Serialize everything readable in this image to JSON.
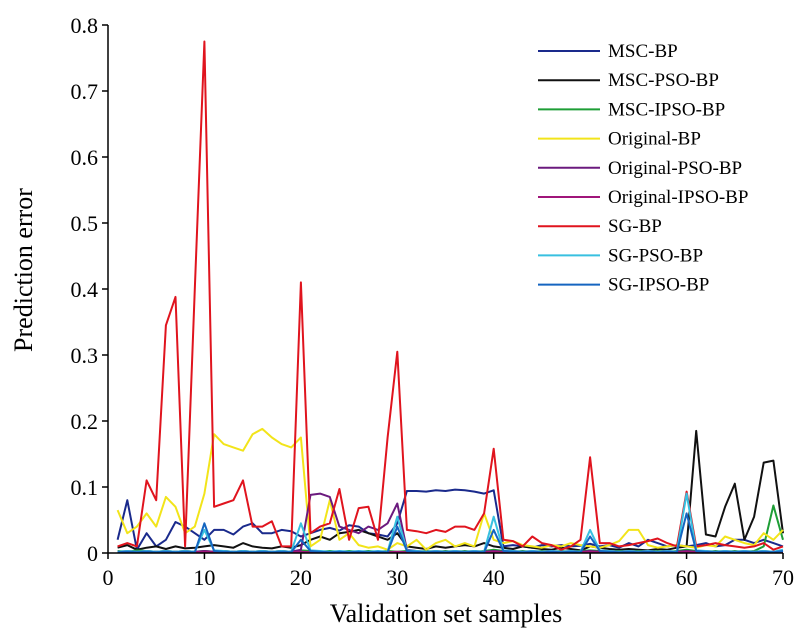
{
  "chart_data": {
    "type": "line",
    "xlabel": "Validation set samples",
    "ylabel": "Prediction error",
    "xlim": [
      0,
      70
    ],
    "ylim": [
      0,
      0.8
    ],
    "xticks": [
      0,
      10,
      20,
      30,
      40,
      50,
      60,
      70
    ],
    "yticks": [
      0,
      0.1,
      0.2,
      0.3,
      0.4,
      0.5,
      0.6,
      0.7,
      0.8
    ],
    "ytick_labels": [
      "0",
      "0.1",
      "0.2",
      "0.3",
      "0.4",
      "0.5",
      "0.6",
      "0.7",
      "0.8"
    ],
    "grid": false,
    "legend_position": "top-right",
    "x": [
      1,
      2,
      3,
      4,
      5,
      6,
      7,
      8,
      9,
      10,
      11,
      12,
      13,
      14,
      15,
      16,
      17,
      18,
      19,
      20,
      21,
      22,
      23,
      24,
      25,
      26,
      27,
      28,
      29,
      30,
      31,
      32,
      33,
      34,
      35,
      36,
      37,
      38,
      39,
      40,
      41,
      42,
      43,
      44,
      45,
      46,
      47,
      48,
      49,
      50,
      51,
      52,
      53,
      54,
      55,
      56,
      57,
      58,
      59,
      60,
      61,
      62,
      63,
      64,
      65,
      66,
      67,
      68,
      69,
      70
    ],
    "series": [
      {
        "name": "MSC-BP",
        "color": "#1a2a8c",
        "values": [
          0.02,
          0.08,
          0.005,
          0.03,
          0.01,
          0.02,
          0.047,
          0.04,
          0.03,
          0.02,
          0.035,
          0.035,
          0.028,
          0.04,
          0.045,
          0.03,
          0.03,
          0.035,
          0.033,
          0.025,
          0.03,
          0.035,
          0.038,
          0.034,
          0.042,
          0.04,
          0.03,
          0.028,
          0.025,
          0.045,
          0.094,
          0.094,
          0.093,
          0.095,
          0.094,
          0.096,
          0.095,
          0.093,
          0.09,
          0.095,
          0.01,
          0.012,
          0.01,
          0.008,
          0.012,
          0.01,
          0.012,
          0.01,
          0.011,
          0.014,
          0.01,
          0.012,
          0.008,
          0.015,
          0.01,
          0.02,
          0.015,
          0.01,
          0.012,
          0.01,
          0.012,
          0.015,
          0.01,
          0.012,
          0.02,
          0.02,
          0.015,
          0.02,
          0.015,
          0.01
        ]
      },
      {
        "name": "MSC-PSO-BP",
        "color": "#111111",
        "values": [
          0.008,
          0.012,
          0.005,
          0.008,
          0.01,
          0.006,
          0.01,
          0.007,
          0.008,
          0.01,
          0.012,
          0.01,
          0.008,
          0.015,
          0.01,
          0.008,
          0.007,
          0.01,
          0.008,
          0.012,
          0.02,
          0.025,
          0.02,
          0.03,
          0.032,
          0.035,
          0.03,
          0.025,
          0.02,
          0.03,
          0.01,
          0.008,
          0.006,
          0.01,
          0.008,
          0.01,
          0.012,
          0.01,
          0.015,
          0.01,
          0.008,
          0.006,
          0.01,
          0.008,
          0.006,
          0.005,
          0.008,
          0.006,
          0.004,
          0.01,
          0.008,
          0.006,
          0.005,
          0.006,
          0.005,
          0.004,
          0.006,
          0.005,
          0.008,
          0.01,
          0.185,
          0.028,
          0.025,
          0.07,
          0.105,
          0.02,
          0.055,
          0.137,
          0.14,
          0.03
        ]
      },
      {
        "name": "MSC-IPSO-BP",
        "color": "#1e9e36",
        "values": [
          0.003,
          0.002,
          0.004,
          0.003,
          0.002,
          0.003,
          0.002,
          0.003,
          0.002,
          0.003,
          0.002,
          0.003,
          0.002,
          0.003,
          0.002,
          0.003,
          0.002,
          0.003,
          0.002,
          0.004,
          0.003,
          0.002,
          0.003,
          0.002,
          0.003,
          0.002,
          0.003,
          0.002,
          0.003,
          0.002,
          0.003,
          0.002,
          0.003,
          0.002,
          0.003,
          0.002,
          0.003,
          0.002,
          0.003,
          0.005,
          0.003,
          0.002,
          0.003,
          0.002,
          0.003,
          0.002,
          0.003,
          0.002,
          0.003,
          0.004,
          0.003,
          0.002,
          0.003,
          0.002,
          0.003,
          0.002,
          0.003,
          0.002,
          0.003,
          0.005,
          0.003,
          0.002,
          0.003,
          0.002,
          0.003,
          0.002,
          0.003,
          0.01,
          0.072,
          0.02
        ]
      },
      {
        "name": "Original-BP",
        "color": "#f2e41a",
        "values": [
          0.065,
          0.03,
          0.04,
          0.06,
          0.04,
          0.085,
          0.07,
          0.03,
          0.04,
          0.09,
          0.18,
          0.165,
          0.16,
          0.155,
          0.18,
          0.188,
          0.175,
          0.165,
          0.16,
          0.175,
          0.01,
          0.02,
          0.08,
          0.02,
          0.03,
          0.012,
          0.008,
          0.01,
          0.005,
          0.015,
          0.01,
          0.02,
          0.005,
          0.015,
          0.02,
          0.01,
          0.015,
          0.01,
          0.06,
          0.02,
          0.015,
          0.018,
          0.012,
          0.01,
          0.008,
          0.012,
          0.01,
          0.015,
          0.012,
          0.01,
          0.008,
          0.012,
          0.018,
          0.035,
          0.035,
          0.012,
          0.008,
          0.01,
          0.012,
          0.01,
          0.008,
          0.012,
          0.01,
          0.025,
          0.02,
          0.015,
          0.012,
          0.03,
          0.02,
          0.035
        ]
      },
      {
        "name": "Original-PSO-BP",
        "color": "#6b1a7e",
        "values": [
          0.002,
          0.003,
          0.002,
          0.003,
          0.002,
          0.003,
          0.002,
          0.003,
          0.002,
          0.003,
          0.002,
          0.003,
          0.002,
          0.003,
          0.002,
          0.003,
          0.002,
          0.003,
          0.002,
          0.005,
          0.088,
          0.09,
          0.085,
          0.04,
          0.035,
          0.03,
          0.04,
          0.035,
          0.045,
          0.075,
          0.005,
          0.003,
          0.002,
          0.003,
          0.002,
          0.003,
          0.002,
          0.003,
          0.002,
          0.003,
          0.002,
          0.003,
          0.002,
          0.003,
          0.002,
          0.003,
          0.002,
          0.003,
          0.002,
          0.003,
          0.002,
          0.003,
          0.002,
          0.003,
          0.002,
          0.003,
          0.002,
          0.003,
          0.002,
          0.003,
          0.002,
          0.003,
          0.002,
          0.003,
          0.002,
          0.003,
          0.002,
          0.003,
          0.002,
          0.003
        ]
      },
      {
        "name": "Original-IPSO-BP",
        "color": "#a0157a",
        "values": [
          0.001,
          0.002,
          0.001,
          0.002,
          0.001,
          0.002,
          0.001,
          0.002,
          0.001,
          0.002,
          0.001,
          0.002,
          0.001,
          0.002,
          0.001,
          0.002,
          0.001,
          0.002,
          0.001,
          0.002,
          0.001,
          0.002,
          0.001,
          0.002,
          0.001,
          0.002,
          0.001,
          0.002,
          0.001,
          0.002,
          0.001,
          0.002,
          0.001,
          0.002,
          0.001,
          0.002,
          0.001,
          0.002,
          0.001,
          0.002,
          0.001,
          0.002,
          0.001,
          0.002,
          0.001,
          0.002,
          0.001,
          0.002,
          0.001,
          0.002,
          0.001,
          0.002,
          0.001,
          0.002,
          0.001,
          0.002,
          0.001,
          0.002,
          0.001,
          0.002,
          0.001,
          0.002,
          0.001,
          0.002,
          0.001,
          0.002,
          0.001,
          0.002,
          0.001,
          0.002
        ]
      },
      {
        "name": "SG-BP",
        "color": "#e0141e",
        "values": [
          0.01,
          0.015,
          0.01,
          0.11,
          0.08,
          0.345,
          0.388,
          0.01,
          0.4,
          0.775,
          0.07,
          0.075,
          0.08,
          0.11,
          0.04,
          0.04,
          0.048,
          0.01,
          0.01,
          0.41,
          0.03,
          0.04,
          0.045,
          0.097,
          0.02,
          0.068,
          0.07,
          0.02,
          0.175,
          0.305,
          0.035,
          0.033,
          0.03,
          0.035,
          0.032,
          0.04,
          0.04,
          0.035,
          0.06,
          0.158,
          0.02,
          0.018,
          0.01,
          0.025,
          0.015,
          0.012,
          0.005,
          0.01,
          0.02,
          0.145,
          0.015,
          0.015,
          0.01,
          0.012,
          0.015,
          0.018,
          0.022,
          0.015,
          0.01,
          0.093,
          0.01,
          0.012,
          0.015,
          0.012,
          0.01,
          0.008,
          0.01,
          0.015,
          0.005,
          0.01
        ]
      },
      {
        "name": "SG-PSO-BP",
        "color": "#38c0e0",
        "values": [
          0.002,
          0.003,
          0.002,
          0.003,
          0.002,
          0.003,
          0.002,
          0.003,
          0.002,
          0.035,
          0.004,
          0.003,
          0.002,
          0.003,
          0.002,
          0.003,
          0.002,
          0.003,
          0.002,
          0.045,
          0.004,
          0.003,
          0.002,
          0.003,
          0.002,
          0.003,
          0.002,
          0.003,
          0.002,
          0.055,
          0.004,
          0.003,
          0.002,
          0.003,
          0.002,
          0.003,
          0.002,
          0.003,
          0.002,
          0.055,
          0.004,
          0.003,
          0.002,
          0.003,
          0.002,
          0.003,
          0.002,
          0.003,
          0.002,
          0.035,
          0.004,
          0.003,
          0.002,
          0.003,
          0.002,
          0.003,
          0.002,
          0.003,
          0.002,
          0.09,
          0.004,
          0.003,
          0.002,
          0.003,
          0.002,
          0.003,
          0.002,
          0.003,
          0.002,
          0.005
        ]
      },
      {
        "name": "SG-IPSO-BP",
        "color": "#1565c0",
        "values": [
          0.001,
          0.002,
          0.001,
          0.002,
          0.001,
          0.002,
          0.001,
          0.002,
          0.001,
          0.045,
          0.003,
          0.002,
          0.001,
          0.002,
          0.001,
          0.002,
          0.001,
          0.002,
          0.001,
          0.02,
          0.003,
          0.002,
          0.001,
          0.002,
          0.001,
          0.002,
          0.001,
          0.002,
          0.001,
          0.04,
          0.003,
          0.002,
          0.001,
          0.002,
          0.001,
          0.002,
          0.001,
          0.002,
          0.001,
          0.035,
          0.003,
          0.002,
          0.001,
          0.002,
          0.001,
          0.002,
          0.001,
          0.002,
          0.001,
          0.025,
          0.003,
          0.002,
          0.001,
          0.002,
          0.001,
          0.002,
          0.001,
          0.002,
          0.001,
          0.06,
          0.003,
          0.002,
          0.001,
          0.002,
          0.001,
          0.002,
          0.001,
          0.002,
          0.001,
          0.003
        ]
      }
    ]
  }
}
